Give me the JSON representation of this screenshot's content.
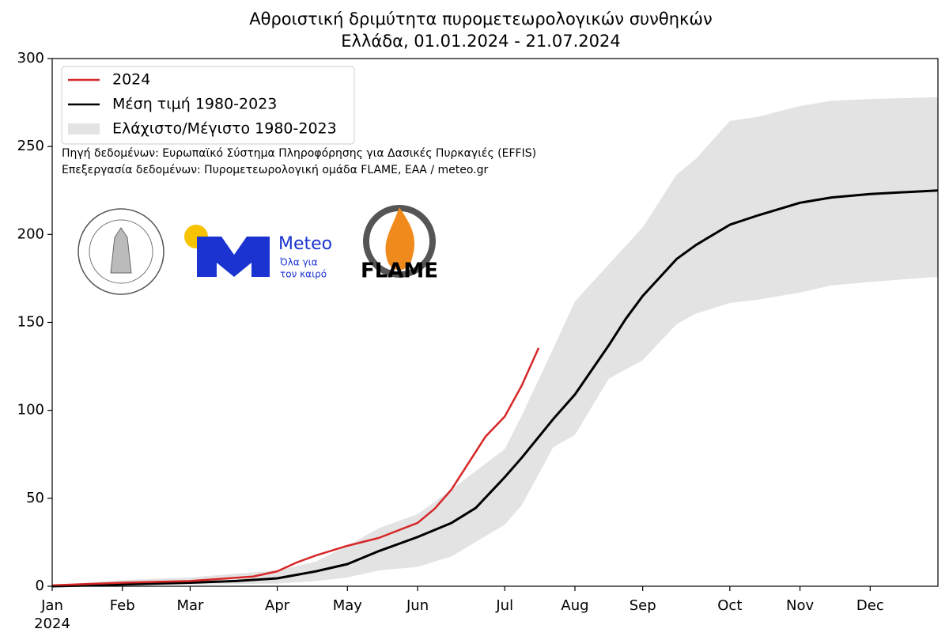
{
  "chart_data": {
    "type": "line",
    "title": "Αθροιστική δριμύτητα πυρομετεωρολογικών συνθηκών",
    "subtitle": "Ελλάδα, 01.01.2024 - 21.07.2024",
    "x_year_label": "2024",
    "notes": [
      "Πηγή δεδομένων: Ευρωπαϊκό Σύστημα Πληροφόρησης για Δασικές Πυρκαγιές (EFFIS)",
      "Επεξεργασία δεδομένων: Πυρομετεωρολογική ομάδα FLAME, ΕΑΑ / meteo.gr"
    ],
    "logos": {
      "meteo": "Meteo",
      "meteo_slogan": [
        "Όλα για",
        "τον καιρό"
      ],
      "flame": "FLAME"
    },
    "legend": "upper left",
    "xlim": [
      0,
      366
    ],
    "ylim": [
      0,
      300
    ],
    "xticks": [
      {
        "value": 0,
        "label": "Jan"
      },
      {
        "value": 29,
        "label": "Feb"
      },
      {
        "value": 57,
        "label": "Mar"
      },
      {
        "value": 93,
        "label": "Apr"
      },
      {
        "value": 122,
        "label": "May"
      },
      {
        "value": 151,
        "label": "Jun"
      },
      {
        "value": 187,
        "label": "Jul"
      },
      {
        "value": 216,
        "label": "Aug"
      },
      {
        "value": 244,
        "label": "Sep"
      },
      {
        "value": 280,
        "label": "Oct"
      },
      {
        "value": 309,
        "label": "Nov"
      },
      {
        "value": 338,
        "label": "Dec"
      }
    ],
    "yticks": [
      0,
      50,
      100,
      150,
      200,
      250,
      300
    ],
    "band": {
      "name": "Ελάχιστο/Μέγιστο 1980-2023",
      "color": "#e3e3e3",
      "x": [
        0,
        29,
        57,
        93,
        109,
        122,
        135,
        151,
        165,
        187,
        194,
        207,
        216,
        230,
        244,
        258,
        266,
        280,
        292,
        309,
        322,
        338,
        366
      ],
      "lower": [
        0,
        0.5,
        1,
        1.5,
        3,
        5,
        9,
        11,
        17,
        35,
        46,
        79,
        86,
        118,
        128.5,
        149,
        155,
        161,
        163,
        167,
        171,
        173,
        176
      ],
      "upper": [
        0.5,
        3.5,
        5,
        9,
        14,
        23,
        33,
        41,
        55,
        78,
        97,
        135,
        162,
        183,
        204,
        234,
        243,
        264.5,
        267,
        273,
        276,
        277,
        278
      ]
    },
    "series": [
      {
        "name": "2024",
        "color": "#d62728",
        "x": [
          0,
          29,
          57,
          83,
          93,
          101,
          109,
          122,
          135,
          151,
          158,
          165,
          179,
          187,
          194,
          201
        ],
        "values": [
          0.5,
          2,
          3,
          5.5,
          8.5,
          13.5,
          17.5,
          23,
          27.5,
          36,
          44,
          55,
          85,
          96.5,
          114,
          135.5
        ]
      },
      {
        "name": "Μέση τιμή 1980-2023",
        "color": "#000000",
        "x": [
          0,
          29,
          57,
          76,
          93,
          109,
          122,
          135,
          151,
          165,
          175,
          187,
          194,
          207,
          216,
          230,
          237,
          244,
          258,
          266,
          280,
          292,
          309,
          322,
          338,
          366
        ],
        "values": [
          0,
          1,
          2,
          3,
          4.5,
          8.5,
          12.6,
          20,
          28,
          36,
          44.5,
          62,
          73,
          95,
          109,
          137,
          152,
          165,
          186,
          194,
          205.5,
          211,
          218,
          221,
          223,
          225
        ]
      }
    ]
  }
}
